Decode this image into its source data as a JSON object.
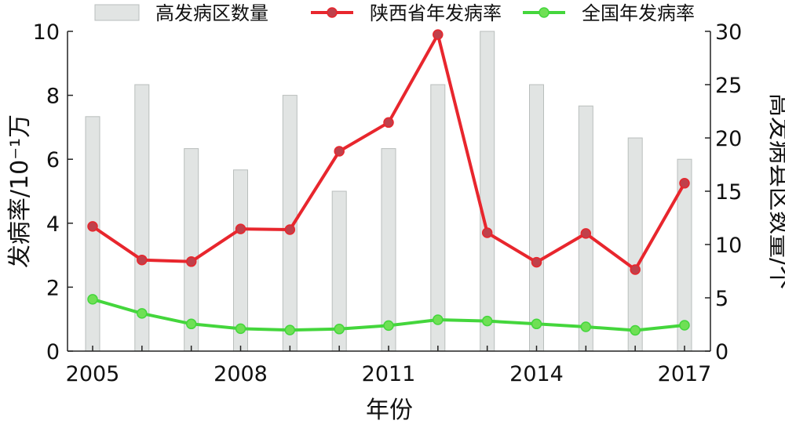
{
  "chart_data": {
    "type": "bar+line",
    "x": [
      2005,
      2006,
      2007,
      2008,
      2009,
      2010,
      2011,
      2012,
      2013,
      2014,
      2015,
      2016,
      2017
    ],
    "x_tick_labels": [
      "2005",
      "2008",
      "2011",
      "2014",
      "2017"
    ],
    "xlabel": "年份",
    "ylabel_left": "发病率/10⁻¹万",
    "ylabel_right": "高发病县区数量/个",
    "ylim_left": [
      0,
      10
    ],
    "ylim_right": [
      0,
      30
    ],
    "yticks_left": [
      "0",
      "2",
      "4",
      "6",
      "8",
      "10"
    ],
    "yticks_right": [
      "0",
      "5",
      "10",
      "15",
      "20",
      "25",
      "30"
    ],
    "grid": false,
    "legend_position": "top",
    "series": [
      {
        "name": "高发病区数量",
        "kind": "bar",
        "axis": "right",
        "color": "#e1e4e3",
        "edge": "#b9bebc",
        "values": [
          22,
          25,
          19,
          17,
          24,
          15,
          19,
          25,
          30,
          25,
          23,
          20,
          18
        ]
      },
      {
        "name": "陕西省年发病率",
        "kind": "line",
        "axis": "left",
        "color": "#e8262d",
        "marker": "#c0404a",
        "values": [
          3.9,
          2.85,
          2.8,
          3.82,
          3.8,
          6.25,
          7.15,
          9.9,
          3.7,
          2.78,
          3.68,
          2.55,
          5.25
        ]
      },
      {
        "name": "全国年发病率",
        "kind": "line",
        "axis": "left",
        "color": "#44d63c",
        "marker": "#6fe055",
        "values": [
          1.62,
          1.18,
          0.85,
          0.7,
          0.66,
          0.69,
          0.8,
          0.98,
          0.94,
          0.85,
          0.76,
          0.65,
          0.81
        ]
      }
    ]
  }
}
